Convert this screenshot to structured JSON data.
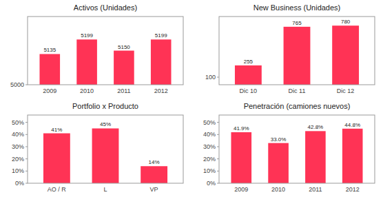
{
  "chart_data": [
    {
      "type": "bar",
      "title": "Activos (Unidades)",
      "categories": [
        "2009",
        "2010",
        "2011",
        "2012"
      ],
      "values": [
        5135,
        5199,
        5150,
        5199
      ],
      "color": "#FF3355",
      "ylim": [
        5000,
        5300
      ],
      "yticks": [
        5000
      ],
      "data_labels": true
    },
    {
      "type": "bar",
      "title": "New Business (Unidades)",
      "categories": [
        "Dic 10",
        "Dic 11",
        "Dic 12"
      ],
      "values": [
        255,
        765,
        780
      ],
      "color": "#FF3355",
      "ylim": [
        0,
        900
      ],
      "yticks": [
        100
      ],
      "data_labels": true
    },
    {
      "type": "bar",
      "title": "Portfolio x Producto",
      "categories": [
        "AO / R",
        "L",
        "VP"
      ],
      "values": [
        41,
        45,
        14
      ],
      "value_labels": [
        "41%",
        "45%",
        "14%"
      ],
      "color": "#FF3355",
      "ylim": [
        0,
        56
      ],
      "yticks": [
        {
          "value": 0,
          "label": "0%"
        },
        {
          "value": 10,
          "label": "10%"
        },
        {
          "value": 20,
          "label": "20%"
        },
        {
          "value": 30,
          "label": "30%"
        },
        {
          "value": 40,
          "label": "40%"
        },
        {
          "value": 50,
          "label": "50%"
        }
      ],
      "data_labels": true
    },
    {
      "type": "bar",
      "title": "Penetración (camiones nuevos)",
      "categories": [
        "2009",
        "2010",
        "2011",
        "2012"
      ],
      "values": [
        41.9,
        33.0,
        42.8,
        44.8
      ],
      "value_labels": [
        "41.9%",
        "33.0%",
        "42.8%",
        "44.8%"
      ],
      "color": "#FF3355",
      "ylim": [
        0,
        56
      ],
      "yticks": [
        {
          "value": 0,
          "label": "0%"
        },
        {
          "value": 10,
          "label": "10%"
        },
        {
          "value": 20,
          "label": "20%"
        },
        {
          "value": 30,
          "label": "30%"
        },
        {
          "value": 40,
          "label": "40%"
        },
        {
          "value": 50,
          "label": "50%"
        }
      ],
      "data_labels": true
    }
  ]
}
